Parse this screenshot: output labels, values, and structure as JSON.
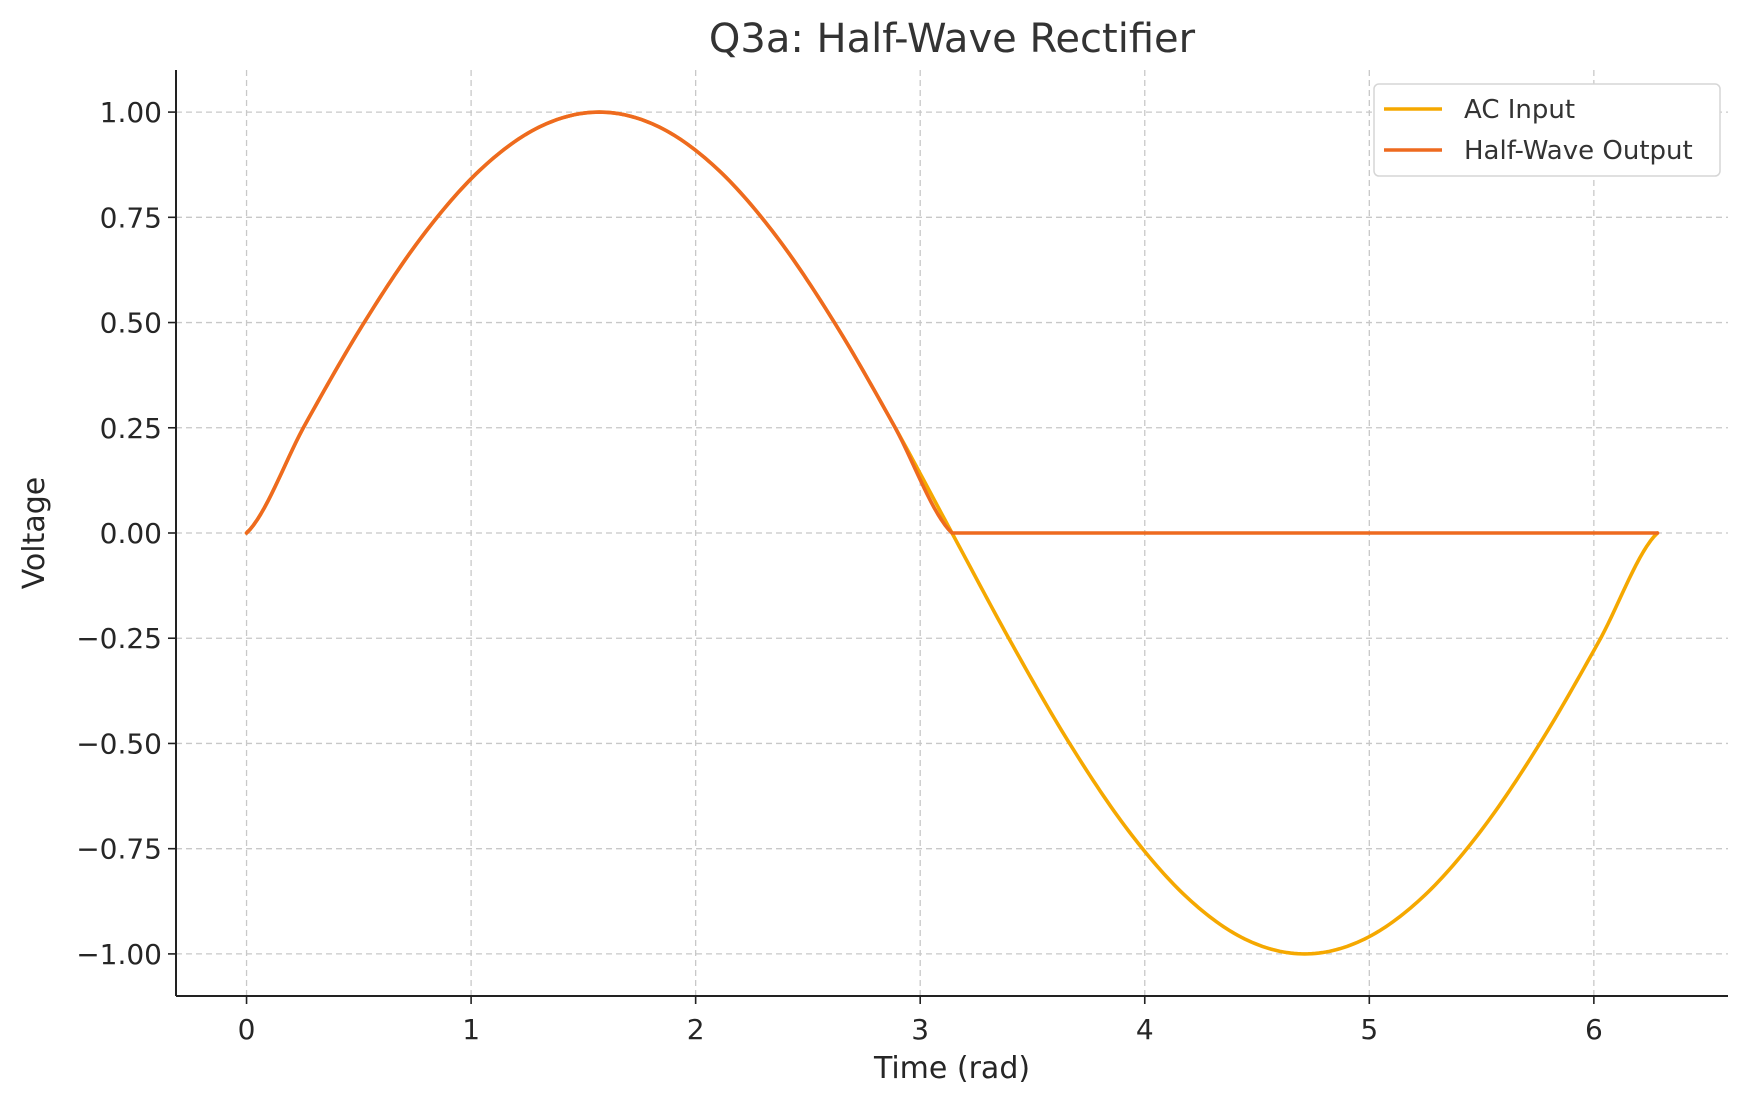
{
  "chart_data": {
    "type": "line",
    "title": "Q3a: Half-Wave Rectifier",
    "xlabel": "Time (rad)",
    "ylabel": "Voltage",
    "xlim": [
      -0.3142,
      6.5974
    ],
    "ylim": [
      -1.1,
      1.1
    ],
    "xticks": [
      0,
      1,
      2,
      3,
      4,
      5,
      6
    ],
    "xtick_labels": [
      "0",
      "1",
      "2",
      "3",
      "4",
      "5",
      "6"
    ],
    "yticks": [
      1.0,
      0.75,
      0.5,
      0.25,
      0.0,
      -0.25,
      -0.5,
      -0.75,
      -1.0
    ],
    "ytick_labels": [
      "1.00",
      "0.75",
      "0.50",
      "0.25",
      "0.00",
      "−0.25",
      "−0.50",
      "−0.75",
      "−1.00"
    ],
    "grid": true,
    "legend_position": "top-right",
    "x": [
      0,
      0.2618,
      0.5236,
      0.7854,
      1.0472,
      1.309,
      1.5708,
      1.8326,
      2.0944,
      2.3562,
      2.618,
      2.8798,
      3.1416,
      3.4034,
      3.6652,
      3.927,
      4.1888,
      4.4506,
      4.7124,
      4.9742,
      5.236,
      5.4978,
      5.7596,
      6.0214,
      6.2832
    ],
    "series": [
      {
        "name": "AC Input",
        "color": "#F5A800",
        "values": [
          0,
          0.2588,
          0.5,
          0.7071,
          0.866,
          0.9659,
          1.0,
          0.9659,
          0.866,
          0.7071,
          0.5,
          0.2588,
          0,
          -0.2588,
          -0.5,
          -0.7071,
          -0.866,
          -0.9659,
          -1.0,
          -0.9659,
          -0.866,
          -0.7071,
          -0.5,
          -0.2588,
          0
        ]
      },
      {
        "name": "Half-Wave Output",
        "color": "#EE6A1F",
        "values": [
          0,
          0.2588,
          0.5,
          0.7071,
          0.866,
          0.9659,
          1.0,
          0.9659,
          0.866,
          0.7071,
          0.5,
          0.2588,
          0,
          0,
          0,
          0,
          0,
          0,
          0,
          0,
          0,
          0,
          0,
          0,
          0
        ]
      }
    ]
  }
}
